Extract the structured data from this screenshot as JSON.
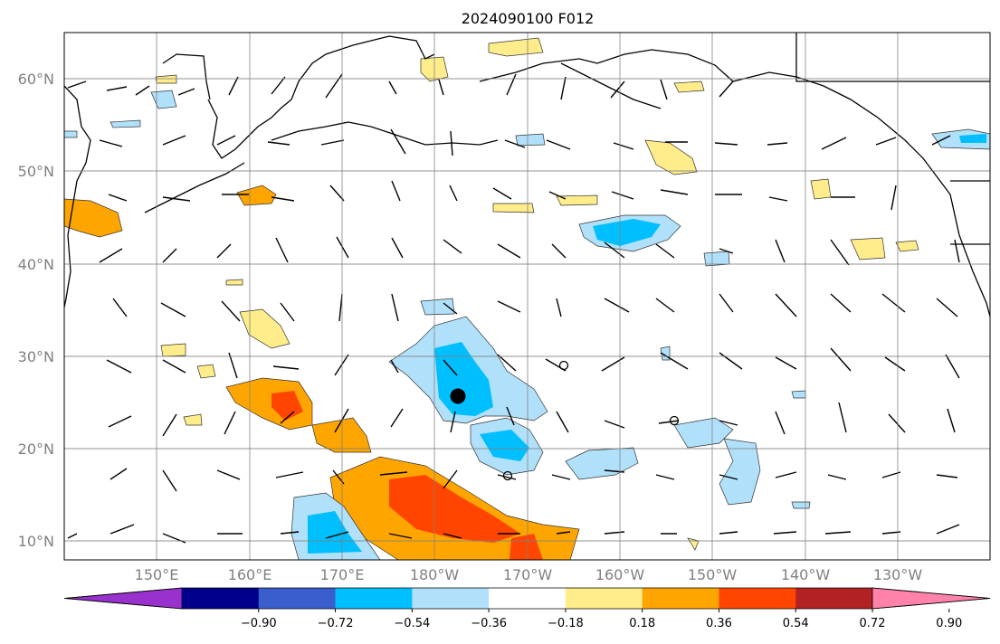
{
  "title": "2024090100 F012",
  "lat_labels": [
    "60°N",
    "50°N",
    "40°N",
    "30°N",
    "20°N",
    "10°N"
  ],
  "lon_labels": [
    "150°E",
    "160°E",
    "170°E",
    "180°W",
    "170°W",
    "160°W",
    "150°W",
    "140°W",
    "130°W"
  ],
  "colorbar": {
    "colors": [
      "#9932cc",
      "#00008b",
      "#3a5fcd",
      "#00bfff",
      "#b0e0fa",
      "#ffffff",
      "#ffec8b",
      "#ffa500",
      "#ff4500",
      "#b22222",
      "#ff82ab"
    ],
    "tick_labels": [
      "−0.90",
      "−0.72",
      "−0.54",
      "−0.36",
      "−0.18",
      "0.18",
      "0.36",
      "0.54",
      "0.72",
      "0.90"
    ]
  },
  "markers": [
    {
      "name": "filled-circle",
      "lat": 25.5,
      "lon": -176
    }
  ]
}
